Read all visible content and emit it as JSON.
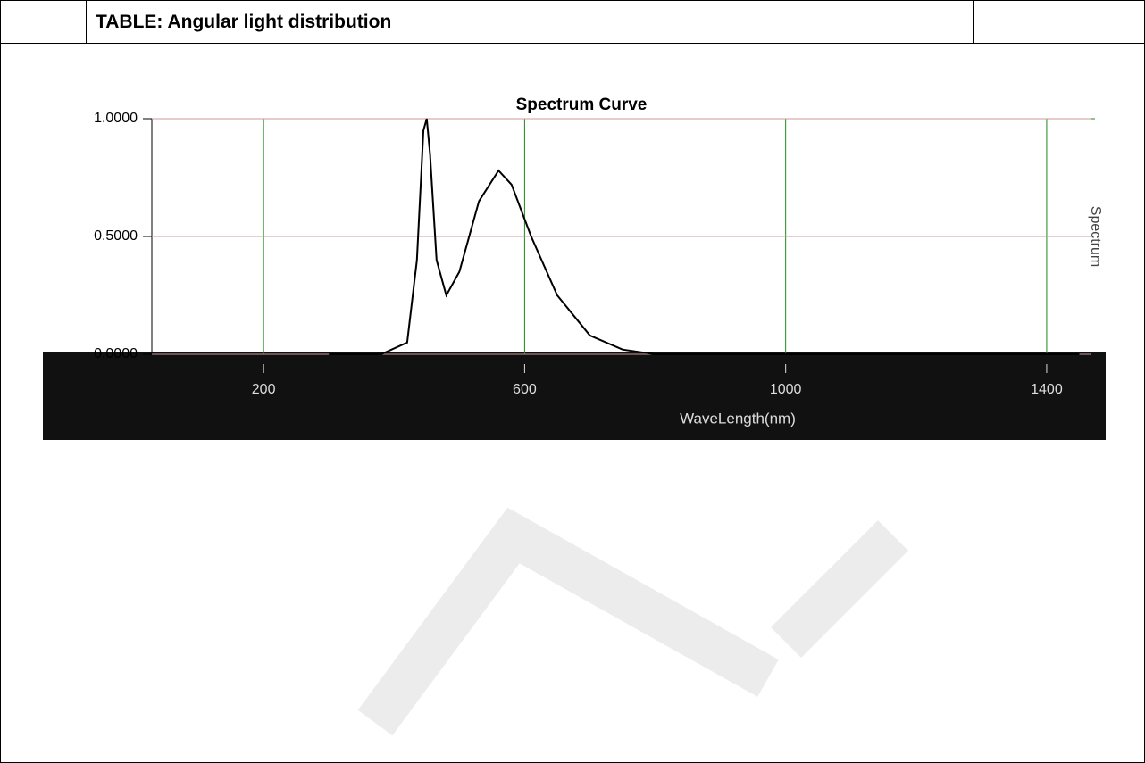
{
  "header": {
    "title": "TABLE: Angular light distribution"
  },
  "figure": {
    "type": "line",
    "title": "Spectrum Curve",
    "x_label": "WaveLength(nm)",
    "y_label": "Spectrum",
    "xlim": [
      0,
      1500
    ],
    "ylim": [
      0,
      1
    ],
    "xticks": [
      200,
      600,
      1000,
      1400
    ],
    "yticks": [
      {
        "value": 0,
        "label": "0.0000"
      },
      {
        "value": 0.5,
        "label": "0.5000"
      },
      {
        "value": 1,
        "label": "1.0000"
      }
    ],
    "x": [
      300,
      380,
      420,
      435,
      445,
      450,
      455,
      465,
      480,
      500,
      530,
      560,
      580,
      610,
      650,
      700,
      750,
      800,
      1450
    ],
    "values": [
      0,
      0,
      0.05,
      0.4,
      0.95,
      1.0,
      0.85,
      0.4,
      0.25,
      0.35,
      0.65,
      0.78,
      0.72,
      0.5,
      0.25,
      0.08,
      0.02,
      0,
      0
    ],
    "color": "#000000",
    "grid": true
  }
}
